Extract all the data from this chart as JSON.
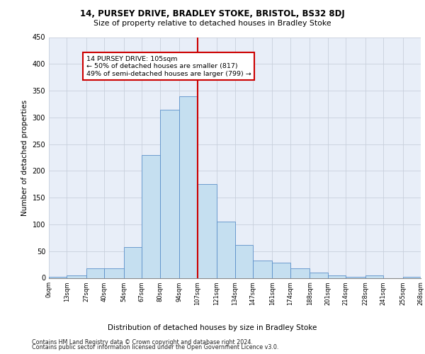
{
  "title1": "14, PURSEY DRIVE, BRADLEY STOKE, BRISTOL, BS32 8DJ",
  "title2": "Size of property relative to detached houses in Bradley Stoke",
  "xlabel": "Distribution of detached houses by size in Bradley Stoke",
  "ylabel": "Number of detached properties",
  "footer1": "Contains HM Land Registry data © Crown copyright and database right 2024.",
  "footer2": "Contains public sector information licensed under the Open Government Licence v3.0.",
  "annotation_line1": "14 PURSEY DRIVE: 105sqm",
  "annotation_line2": "← 50% of detached houses are smaller (817)",
  "annotation_line3": "49% of semi-detached houses are larger (799) →",
  "bin_edges": [
    0,
    13,
    27,
    40,
    54,
    67,
    80,
    94,
    107,
    121,
    134,
    147,
    161,
    174,
    188,
    201,
    214,
    228,
    241,
    255,
    268
  ],
  "bar_heights": [
    2,
    5,
    18,
    18,
    57,
    230,
    315,
    340,
    175,
    105,
    62,
    32,
    28,
    18,
    10,
    5,
    2,
    5,
    0,
    2
  ],
  "bar_color": "#c5dff0",
  "bar_edge_color": "#5b8fc9",
  "vline_color": "#cc0000",
  "vline_x": 107,
  "grid_color": "#c8d0dc",
  "background_color": "#e8eef8",
  "annotation_box_color": "#cc0000",
  "ylim": [
    0,
    450
  ],
  "yticks": [
    0,
    50,
    100,
    150,
    200,
    250,
    300,
    350,
    400,
    450
  ]
}
